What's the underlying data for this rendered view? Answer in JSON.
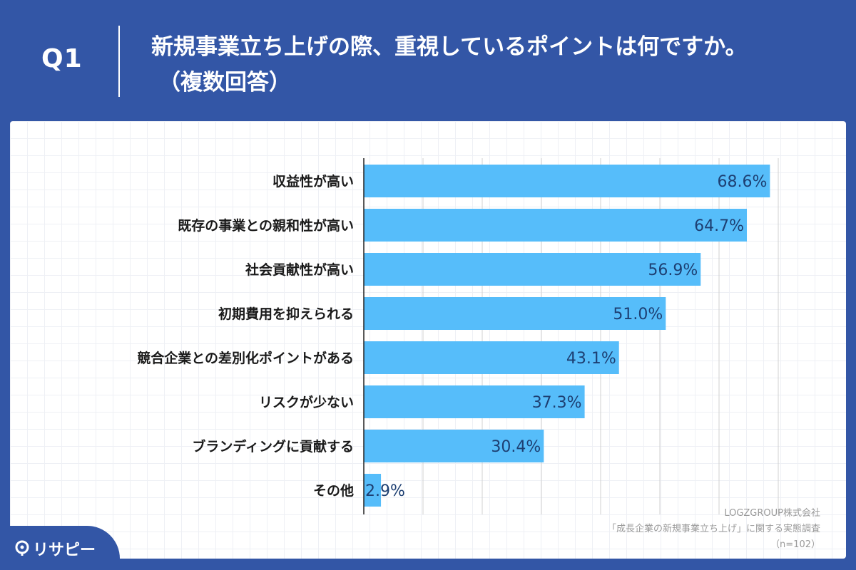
{
  "header": {
    "q_label": "Q1",
    "question_line1": "新規事業立ち上げの際、重視しているポイントは何ですか。",
    "question_line2": "（複数回答）"
  },
  "chart_data": {
    "type": "bar",
    "orientation": "horizontal",
    "categories": [
      "収益性が高い",
      "既存の事業との親和性が高い",
      "社会貢献性が高い",
      "初期費用を抑えられる",
      "競合企業との差別化ポイントがある",
      "リスクが少ない",
      "ブランディングに貢献する",
      "その他"
    ],
    "values": [
      68.6,
      64.7,
      56.9,
      51.0,
      43.1,
      37.3,
      30.4,
      2.9
    ],
    "value_labels": [
      "68.6%",
      "64.7%",
      "56.9%",
      "51.0%",
      "43.1%",
      "37.3%",
      "30.4%",
      "2.9%"
    ],
    "xlim": [
      0,
      70
    ],
    "grid": true,
    "bar_color": "#56bdfa",
    "value_label_color": "#1d3f72"
  },
  "source": {
    "line1": "LOGZGROUP株式会社",
    "line2": "「成長企業の新規事業立ち上げ」に関する実態調査",
    "line3": "（n=102）"
  },
  "brand": {
    "logo_text": "リサピー"
  },
  "colors": {
    "header_bg": "#3356a6",
    "panel_bg": "#ffffff",
    "bar": "#56bdfa"
  }
}
